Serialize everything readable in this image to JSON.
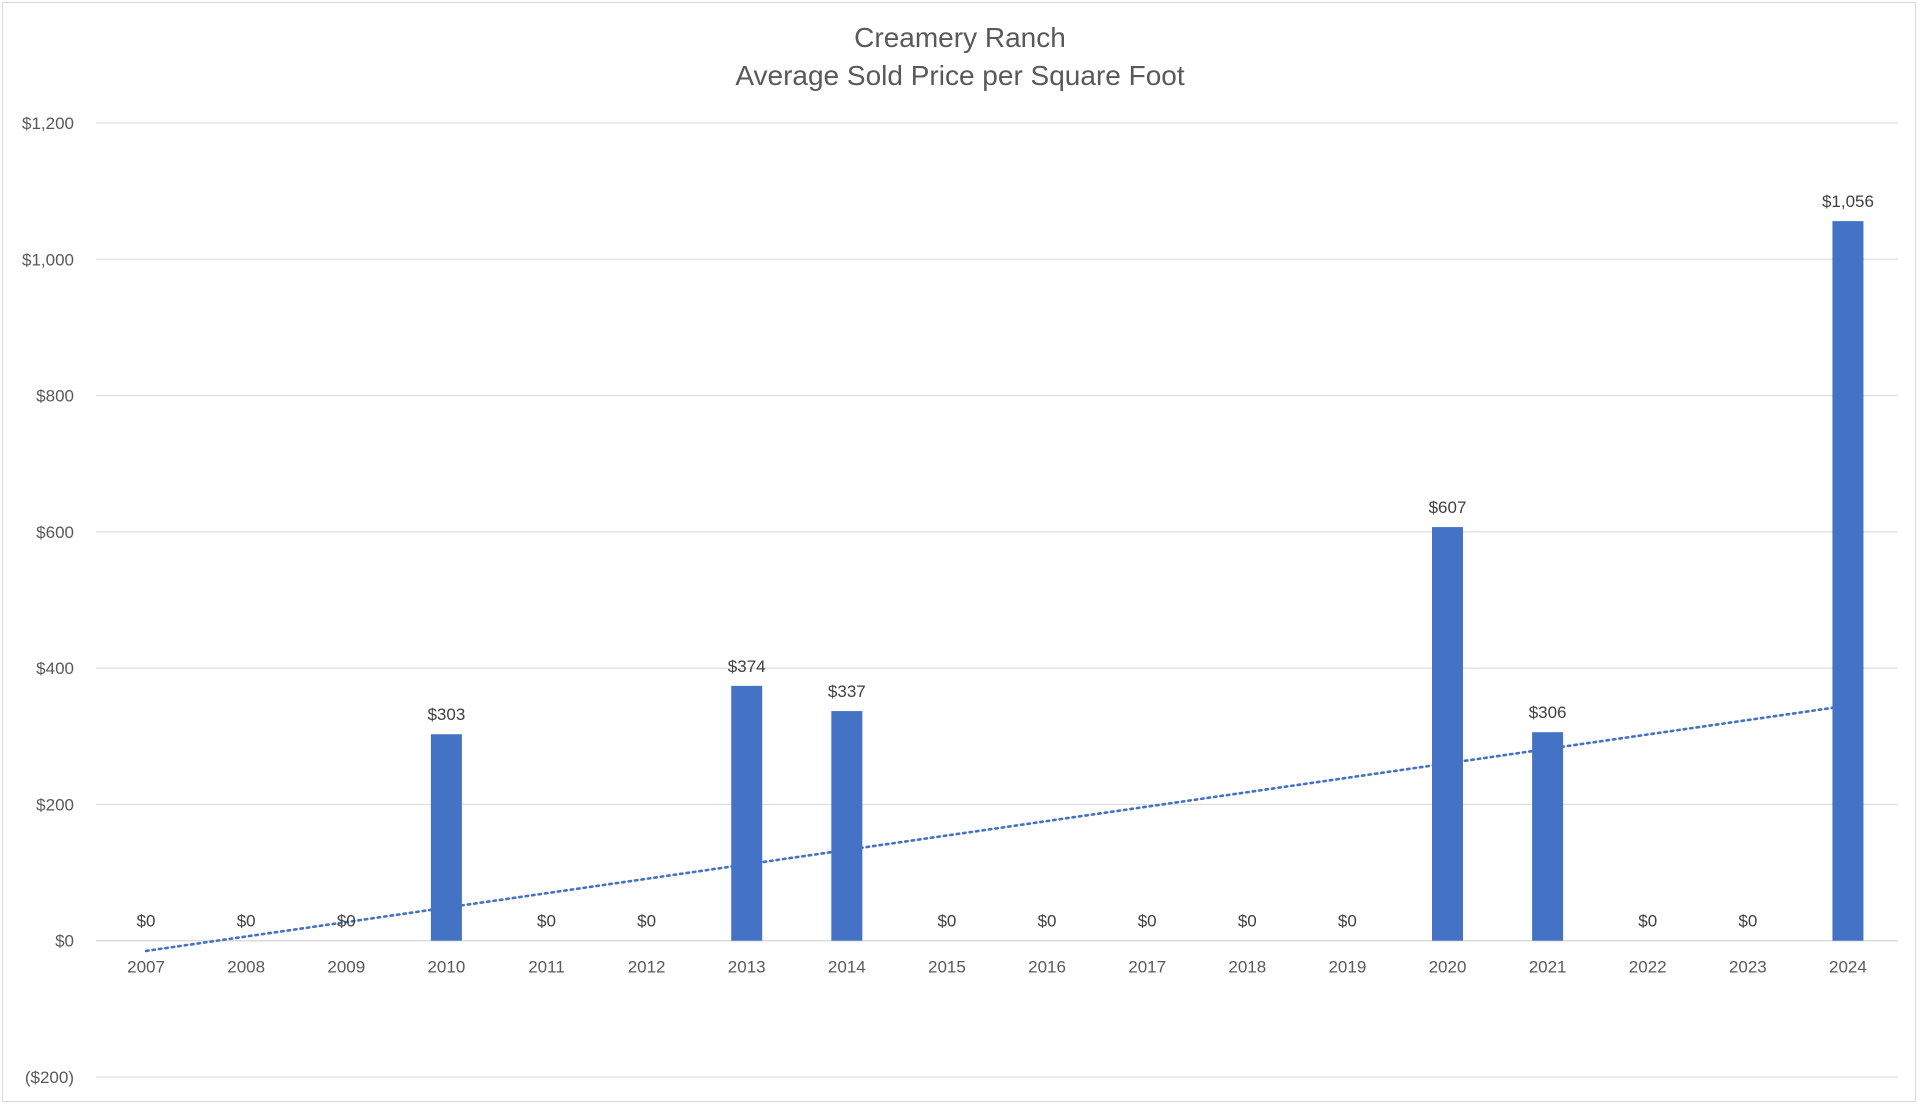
{
  "chart_data": {
    "type": "bar",
    "title": "Creamery Ranch",
    "subtitle": "Average Sold Price per Square Foot",
    "categories": [
      "2007",
      "2008",
      "2009",
      "2010",
      "2011",
      "2012",
      "2013",
      "2014",
      "2015",
      "2016",
      "2017",
      "2018",
      "2019",
      "2020",
      "2021",
      "2022",
      "2023",
      "2024"
    ],
    "values": [
      0,
      0,
      0,
      303,
      0,
      0,
      374,
      337,
      0,
      0,
      0,
      0,
      0,
      607,
      306,
      0,
      0,
      1056
    ],
    "data_labels": [
      "$0",
      "$0",
      "$0",
      "$303",
      "$0",
      "$0",
      "$374",
      "$337",
      "$0",
      "$0",
      "$0",
      "$0",
      "$0",
      "$607",
      "$306",
      "$0",
      "$0",
      "$1,056"
    ],
    "yticks": [
      1200,
      1000,
      800,
      600,
      400,
      200,
      0,
      -200
    ],
    "ytick_labels": [
      "$1,200",
      "$1,000",
      "$800",
      "$600",
      "$400",
      "$200",
      "$0",
      "($200)"
    ],
    "negative_tick_color": "#ff0000",
    "ylim": [
      -200,
      1200
    ],
    "xlabel": "",
    "ylabel": "",
    "grid": true,
    "legend": "none",
    "bar_color": "#4472c4",
    "trendline": {
      "type": "linear",
      "style": "dotted",
      "color": "#4472c4",
      "start": -15,
      "end": 345
    }
  }
}
